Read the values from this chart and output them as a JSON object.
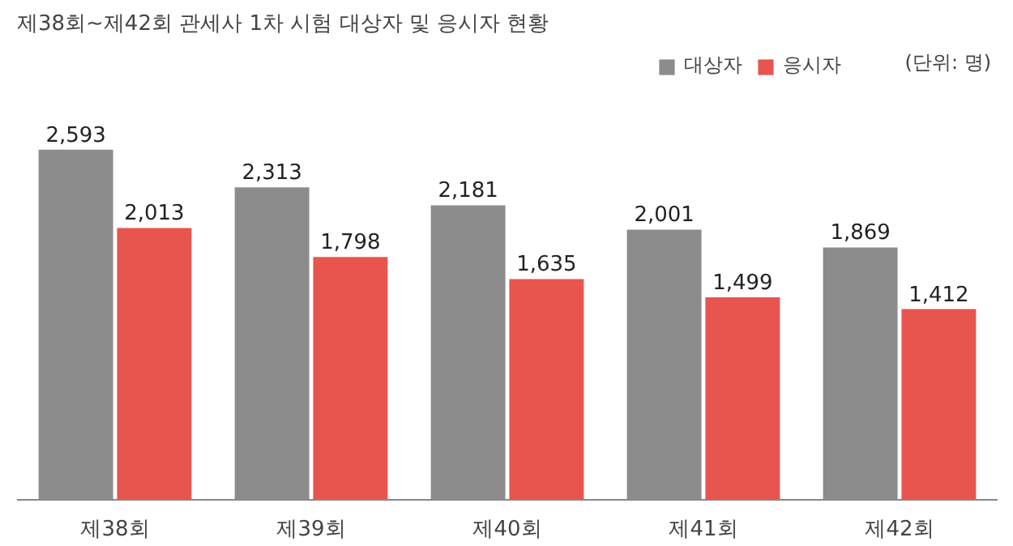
{
  "chart_data": {
    "type": "bar",
    "title": "제38회~제42회 관세사 1차 시험 대상자 및 응시자 현황",
    "categories": [
      "제38회",
      "제39회",
      "제40회",
      "제41회",
      "제42회"
    ],
    "series": [
      {
        "name": "대상자",
        "color": "#8c8c8c",
        "values": [
          2593,
          2313,
          2181,
          2001,
          1869
        ],
        "value_labels": [
          "2,593",
          "2,313",
          "2,181",
          "2,001",
          "1,869"
        ]
      },
      {
        "name": "응시자",
        "color": "#e8554e",
        "values": [
          2013,
          1798,
          1635,
          1499,
          1412
        ],
        "value_labels": [
          "2,013",
          "1,798",
          "1,635",
          "1,499",
          "1,412"
        ]
      }
    ],
    "legend": "top right",
    "grid": false,
    "tick_labels": "x",
    "annotations": [
      "(단위: 명)"
    ]
  }
}
